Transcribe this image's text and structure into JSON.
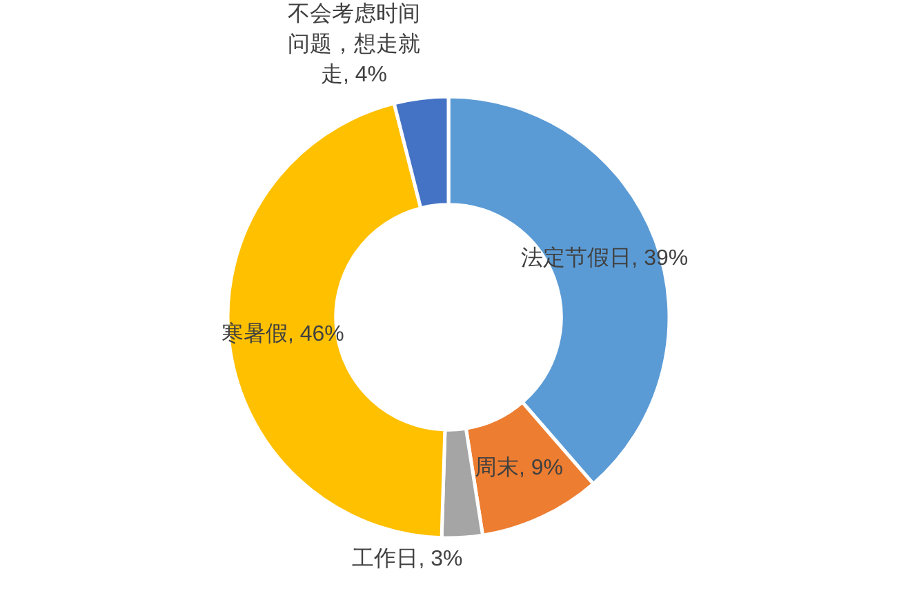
{
  "chart_data": {
    "type": "donut",
    "categories": [
      "法定节假日",
      "周末",
      "工作日",
      "寒暑假",
      "不会考虑时间问题，想走就走"
    ],
    "values": [
      39,
      9,
      3,
      46,
      4
    ],
    "colors": [
      "#5b9bd5",
      "#ed7d31",
      "#a5a5a5",
      "#ffc000",
      "#4472c4"
    ],
    "value_labels": [
      "39%",
      "9%",
      "3%",
      "46%",
      "4%"
    ]
  }
}
